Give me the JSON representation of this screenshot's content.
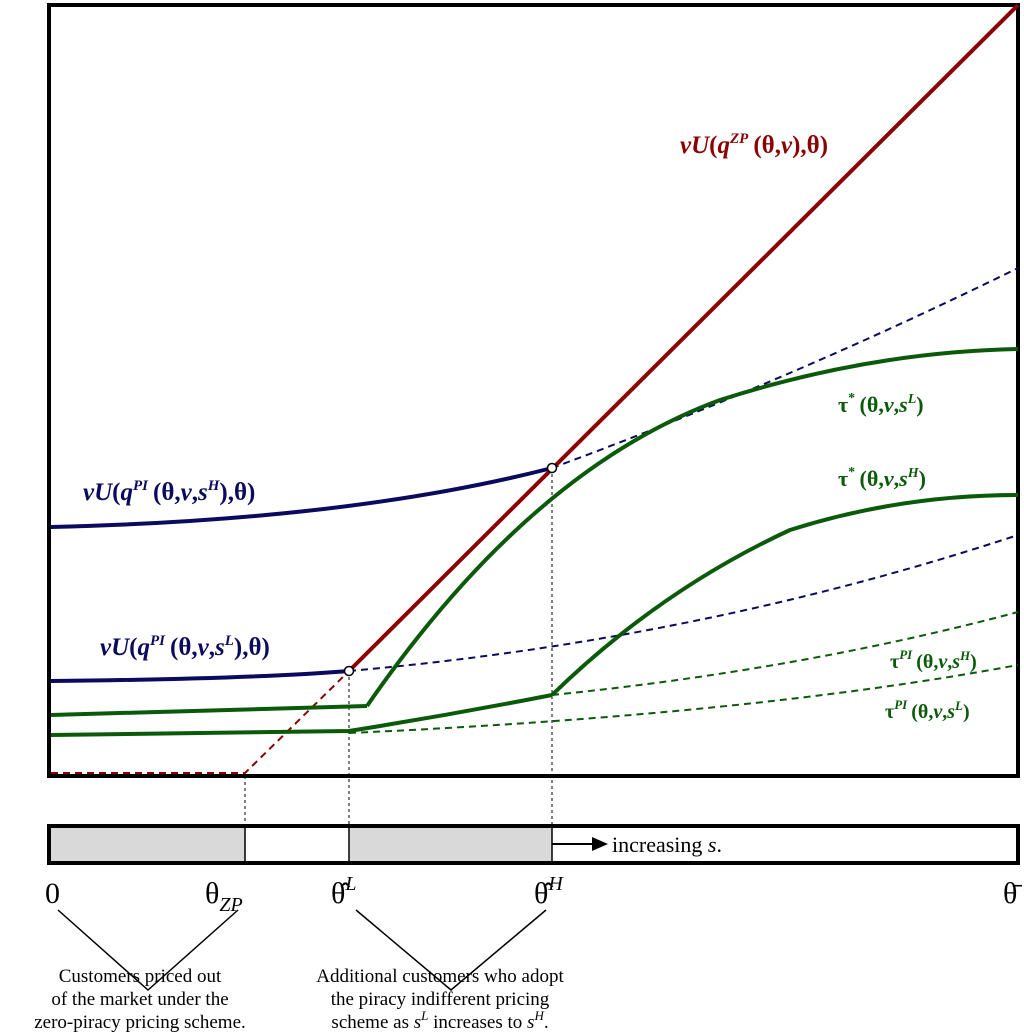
{
  "curves": {
    "zp_utility": {
      "text": "vU(q^{ZP}(θ,v),θ)",
      "v": "v",
      "U": "U",
      "q": "q",
      "sup": "ZP",
      "open": "(",
      "args": "(θ,",
      "argv": "v",
      "close": "),θ)",
      "color": "#8b0000"
    },
    "pi_high_utility": {
      "v": "v",
      "U": "U",
      "q": "q",
      "sup": "PI",
      "args_pre": "(θ,",
      "argv": "v",
      "comma": ",",
      "s": "s",
      "ssup": "H",
      "close": "),θ)",
      "color": "#0a0a5e"
    },
    "pi_low_utility": {
      "v": "v",
      "U": "U",
      "q": "q",
      "sup": "PI",
      "args_pre": "(θ,",
      "argv": "v",
      "comma": ",",
      "s": "s",
      "ssup": "L",
      "close": "),θ)",
      "color": "#0a0a5e"
    },
    "tau_star_low": {
      "tau": "τ",
      "sup": "*",
      "args_pre": "(θ,",
      "argv": "v",
      "comma": ",",
      "s": "s",
      "ssup": "L",
      "close": ")",
      "color": "#0a5a0a"
    },
    "tau_star_high": {
      "tau": "τ",
      "sup": "*",
      "args_pre": "(θ,",
      "argv": "v",
      "comma": ",",
      "s": "s",
      "ssup": "H",
      "close": ")",
      "color": "#0a5a0a"
    },
    "tau_pi_high": {
      "tau": "τ",
      "sup": "PI",
      "args_pre": "(θ,",
      "argv": "v",
      "comma": ",",
      "s": "s",
      "ssup": "H",
      "close": ")",
      "color": "#0a5a0a"
    },
    "tau_pi_low": {
      "tau": "τ",
      "sup": "PI",
      "args_pre": "(θ,",
      "argv": "v",
      "comma": ",",
      "s": "s",
      "ssup": "L",
      "close": ")",
      "color": "#0a5a0a"
    }
  },
  "axis": {
    "zero": "0",
    "theta_zp": "θ",
    "theta_zp_sub": "ZP",
    "theta_hat_L": "θ̂",
    "theta_hat_L_sup": "L",
    "theta_hat_H": "θ̂",
    "theta_hat_H_sup": "H",
    "theta_bar": "θ̄"
  },
  "bar": {
    "arrow_text": "increasing ",
    "arrow_s": "s",
    "arrow_end": ".",
    "shade_color": "#d9d9d9"
  },
  "notes": {
    "priced_out": [
      "Customers priced out",
      "of the market under the",
      "zero-piracy pricing scheme."
    ],
    "additional": [
      "Additional customers who adopt",
      "the piracy indifferent pricing"
    ],
    "additional_last_pre": "scheme as ",
    "additional_s1": "s",
    "additional_s1_sup": "L",
    "additional_mid": " increases to ",
    "additional_s2": "s",
    "additional_s2_sup": "H",
    "additional_end": "."
  }
}
